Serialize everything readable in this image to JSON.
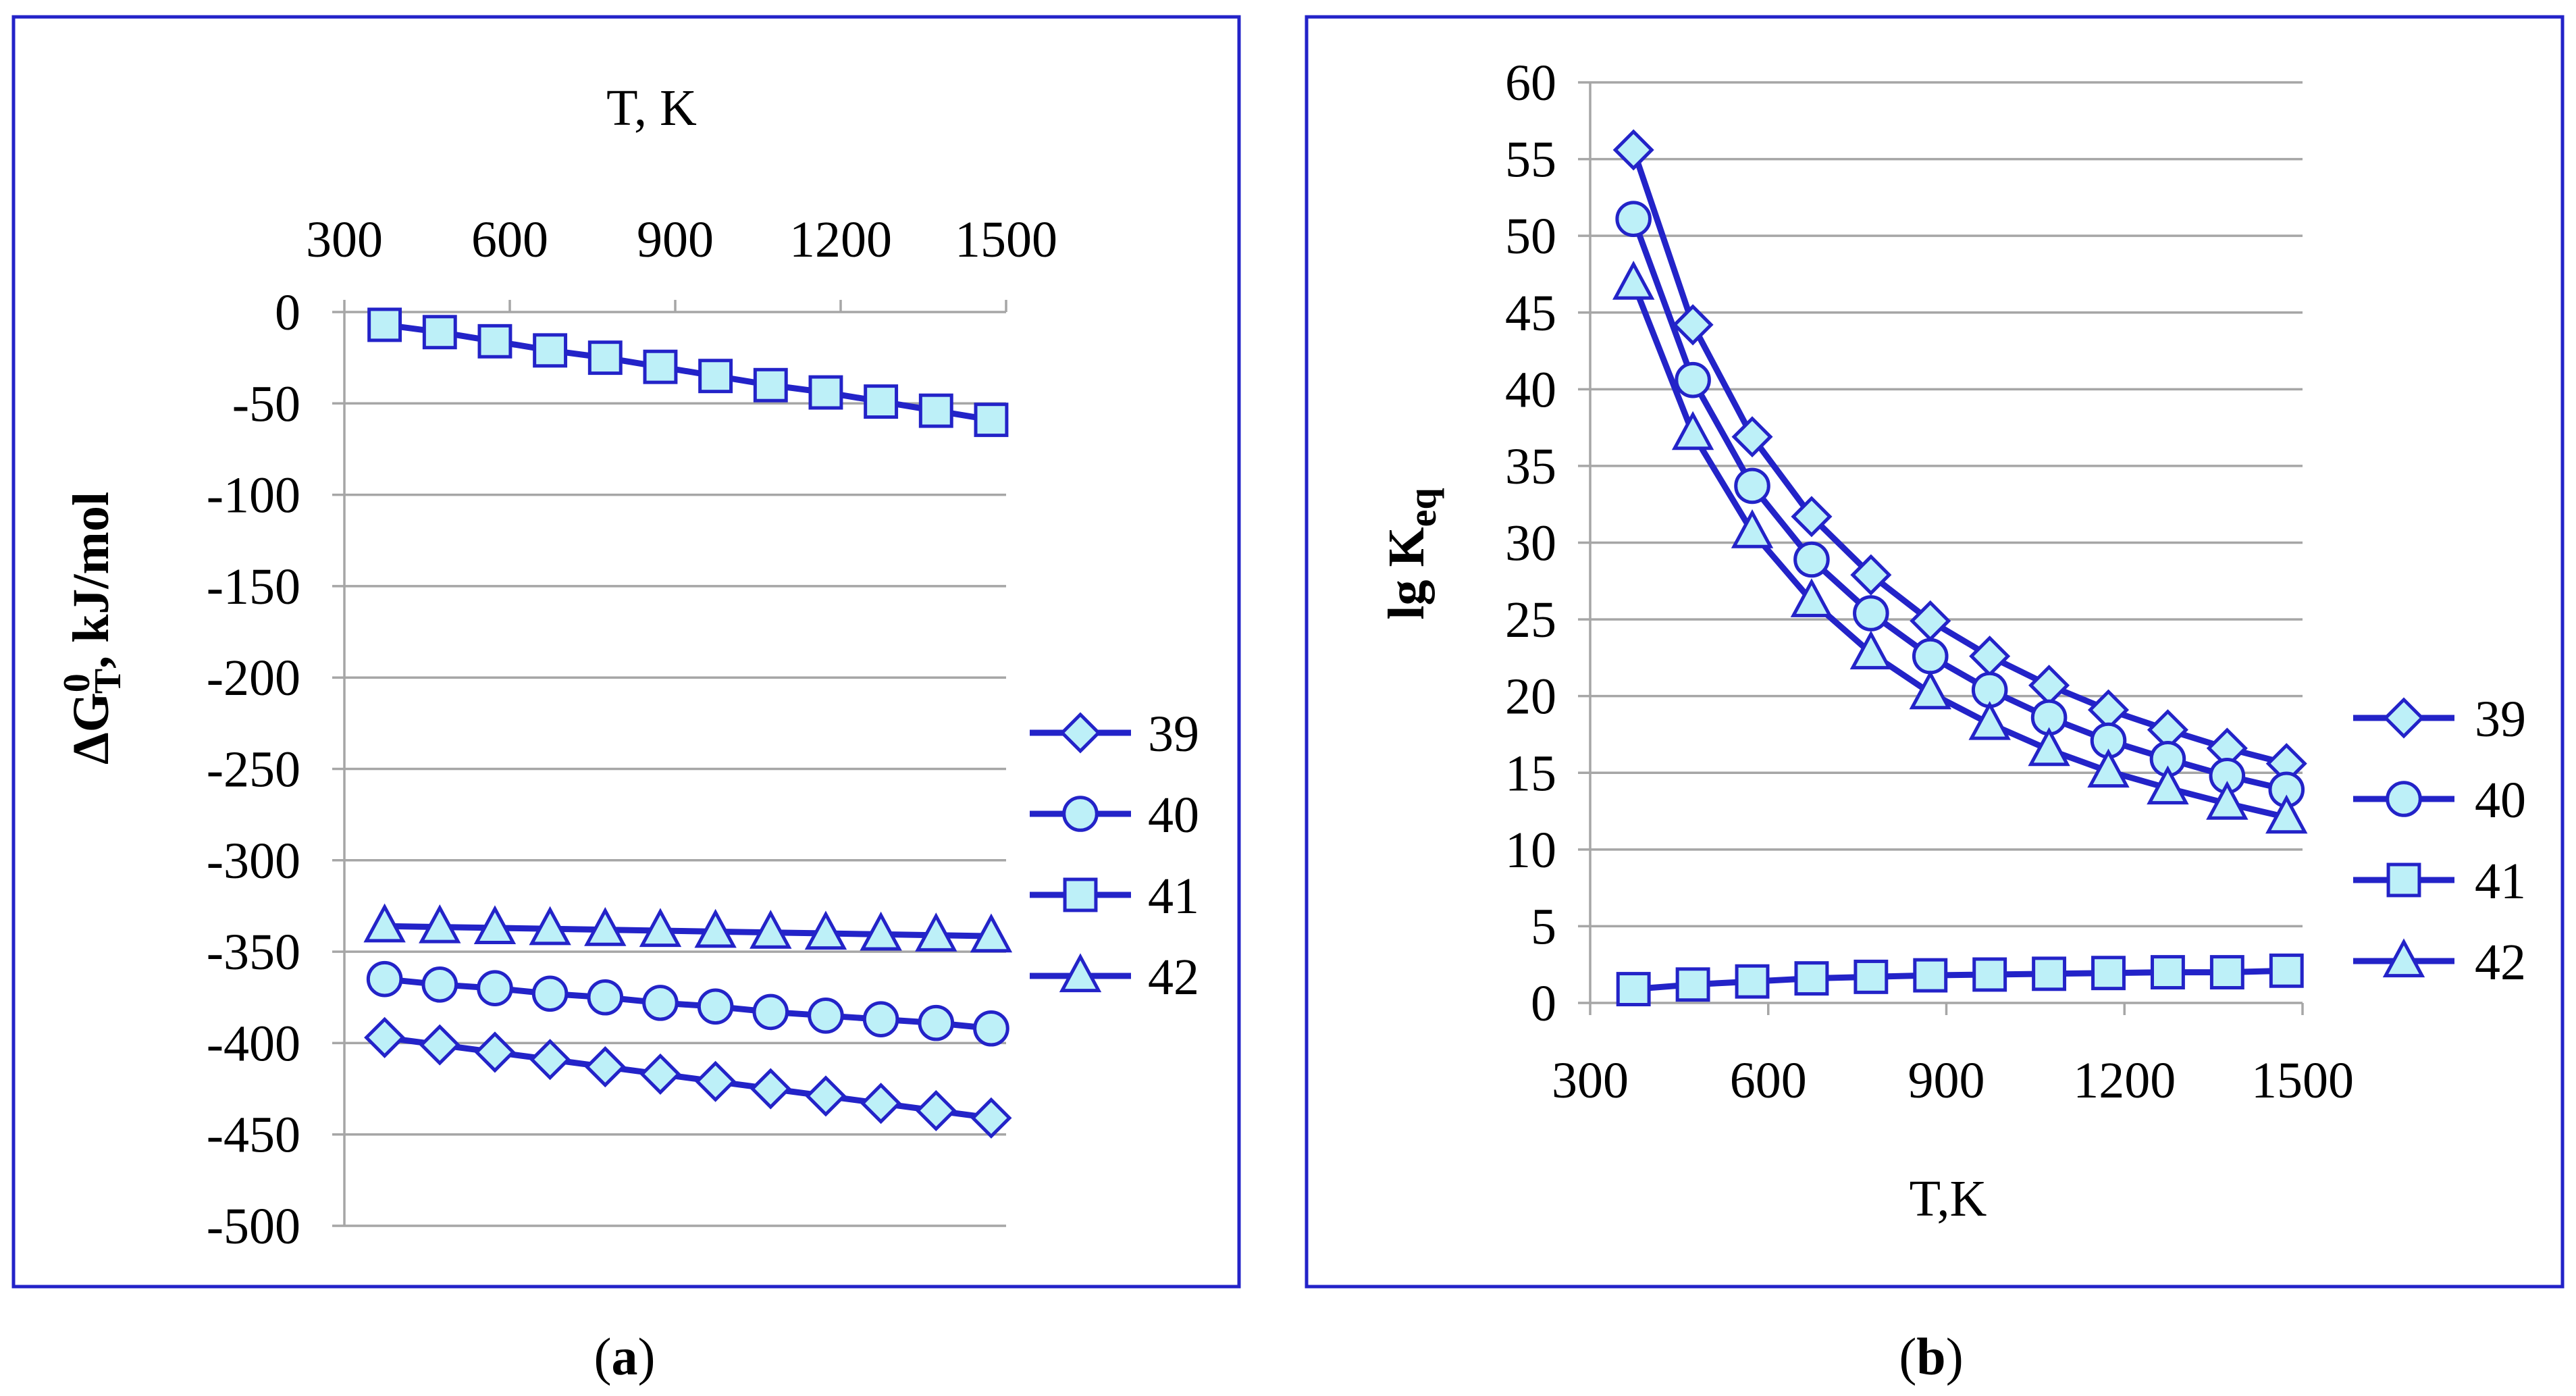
{
  "colors": {
    "line": "#2323c8",
    "marker_fill": "#bdf0f8",
    "grid": "#a6a6a6",
    "frame": "#2323c8"
  },
  "chart_data": [
    {
      "type": "line",
      "caption_letter": "a",
      "caption_open": "(",
      "caption_close": ")",
      "title": "",
      "xlabel": "T, K",
      "ylabel_prefix": "ΔG",
      "ylabel_sup": "0",
      "ylabel_sub": "T",
      "ylabel_suffix": ", kJ/mol",
      "xaxis_position": "top",
      "xlim": [
        300,
        1500
      ],
      "xticks": [
        300,
        600,
        900,
        1200,
        1500
      ],
      "xtick_labels": [
        "300",
        "600",
        "900",
        "1200",
        "1500"
      ],
      "ylim": [
        -500,
        0
      ],
      "yticks": [
        0,
        -50,
        -100,
        -150,
        -200,
        -250,
        -300,
        -350,
        -400,
        -450,
        -500
      ],
      "ytick_labels": [
        "0",
        "-50",
        "-100",
        "-150",
        "-200",
        "-250",
        "-300",
        "-350",
        "-400",
        "-450",
        "-500"
      ],
      "x": [
        373,
        473,
        573,
        673,
        773,
        873,
        973,
        1073,
        1173,
        1273,
        1373,
        1473
      ],
      "legend_position": "right",
      "series": [
        {
          "name": "39",
          "marker": "diamond",
          "values": [
            -397,
            -401,
            -405,
            -409,
            -413,
            -417,
            -421,
            -425,
            -429,
            -433,
            -437,
            -441
          ]
        },
        {
          "name": "40",
          "marker": "circle",
          "values": [
            -365,
            -368,
            -370,
            -373,
            -375,
            -378,
            -380,
            -383,
            -385,
            -387,
            -389,
            -392
          ]
        },
        {
          "name": "41",
          "marker": "square",
          "values": [
            -7,
            -11,
            -16,
            -21,
            -25,
            -30,
            -35,
            -40,
            -44,
            -49,
            -54,
            -59
          ]
        },
        {
          "name": "42",
          "marker": "triangle",
          "values": [
            -336,
            -336.5,
            -337,
            -337.5,
            -338,
            -338.5,
            -339,
            -339.5,
            -340,
            -340.5,
            -341,
            -341.5
          ]
        }
      ]
    },
    {
      "type": "line",
      "caption_letter": "b",
      "caption_open": "(",
      "caption_close": ")",
      "title": "",
      "xlabel": "T,K",
      "ylabel_prefix": "lg K",
      "ylabel_sub": "eq",
      "xaxis_position": "bottom",
      "xlim": [
        300,
        1500
      ],
      "xticks": [
        300,
        600,
        900,
        1200,
        1500
      ],
      "xtick_labels": [
        "300",
        "600",
        "900",
        "1200",
        "1500"
      ],
      "ylim": [
        0,
        60
      ],
      "yticks": [
        0,
        5,
        10,
        15,
        20,
        25,
        30,
        35,
        40,
        45,
        50,
        55,
        60
      ],
      "ytick_labels": [
        "0",
        "5",
        "10",
        "15",
        "20",
        "25",
        "30",
        "35",
        "40",
        "45",
        "50",
        "55",
        "60"
      ],
      "x": [
        373,
        473,
        573,
        673,
        773,
        873,
        973,
        1073,
        1173,
        1273,
        1373,
        1473
      ],
      "legend_position": "right",
      "series": [
        {
          "name": "39",
          "marker": "diamond",
          "values": [
            55.6,
            44.2,
            36.9,
            31.7,
            27.9,
            24.9,
            22.6,
            20.7,
            19.1,
            17.8,
            16.6,
            15.6
          ]
        },
        {
          "name": "40",
          "marker": "circle",
          "values": [
            51.1,
            40.6,
            33.7,
            28.9,
            25.4,
            22.6,
            20.4,
            18.6,
            17.1,
            15.9,
            14.8,
            13.9
          ]
        },
        {
          "name": "41",
          "marker": "square",
          "values": [
            0.9,
            1.2,
            1.4,
            1.6,
            1.7,
            1.8,
            1.85,
            1.9,
            1.95,
            2.0,
            2.0,
            2.1
          ]
        },
        {
          "name": "42",
          "marker": "triangle",
          "values": [
            46.9,
            37.1,
            30.7,
            26.2,
            22.8,
            20.2,
            18.2,
            16.5,
            15.1,
            14.0,
            13.0,
            12.1
          ]
        }
      ]
    }
  ]
}
